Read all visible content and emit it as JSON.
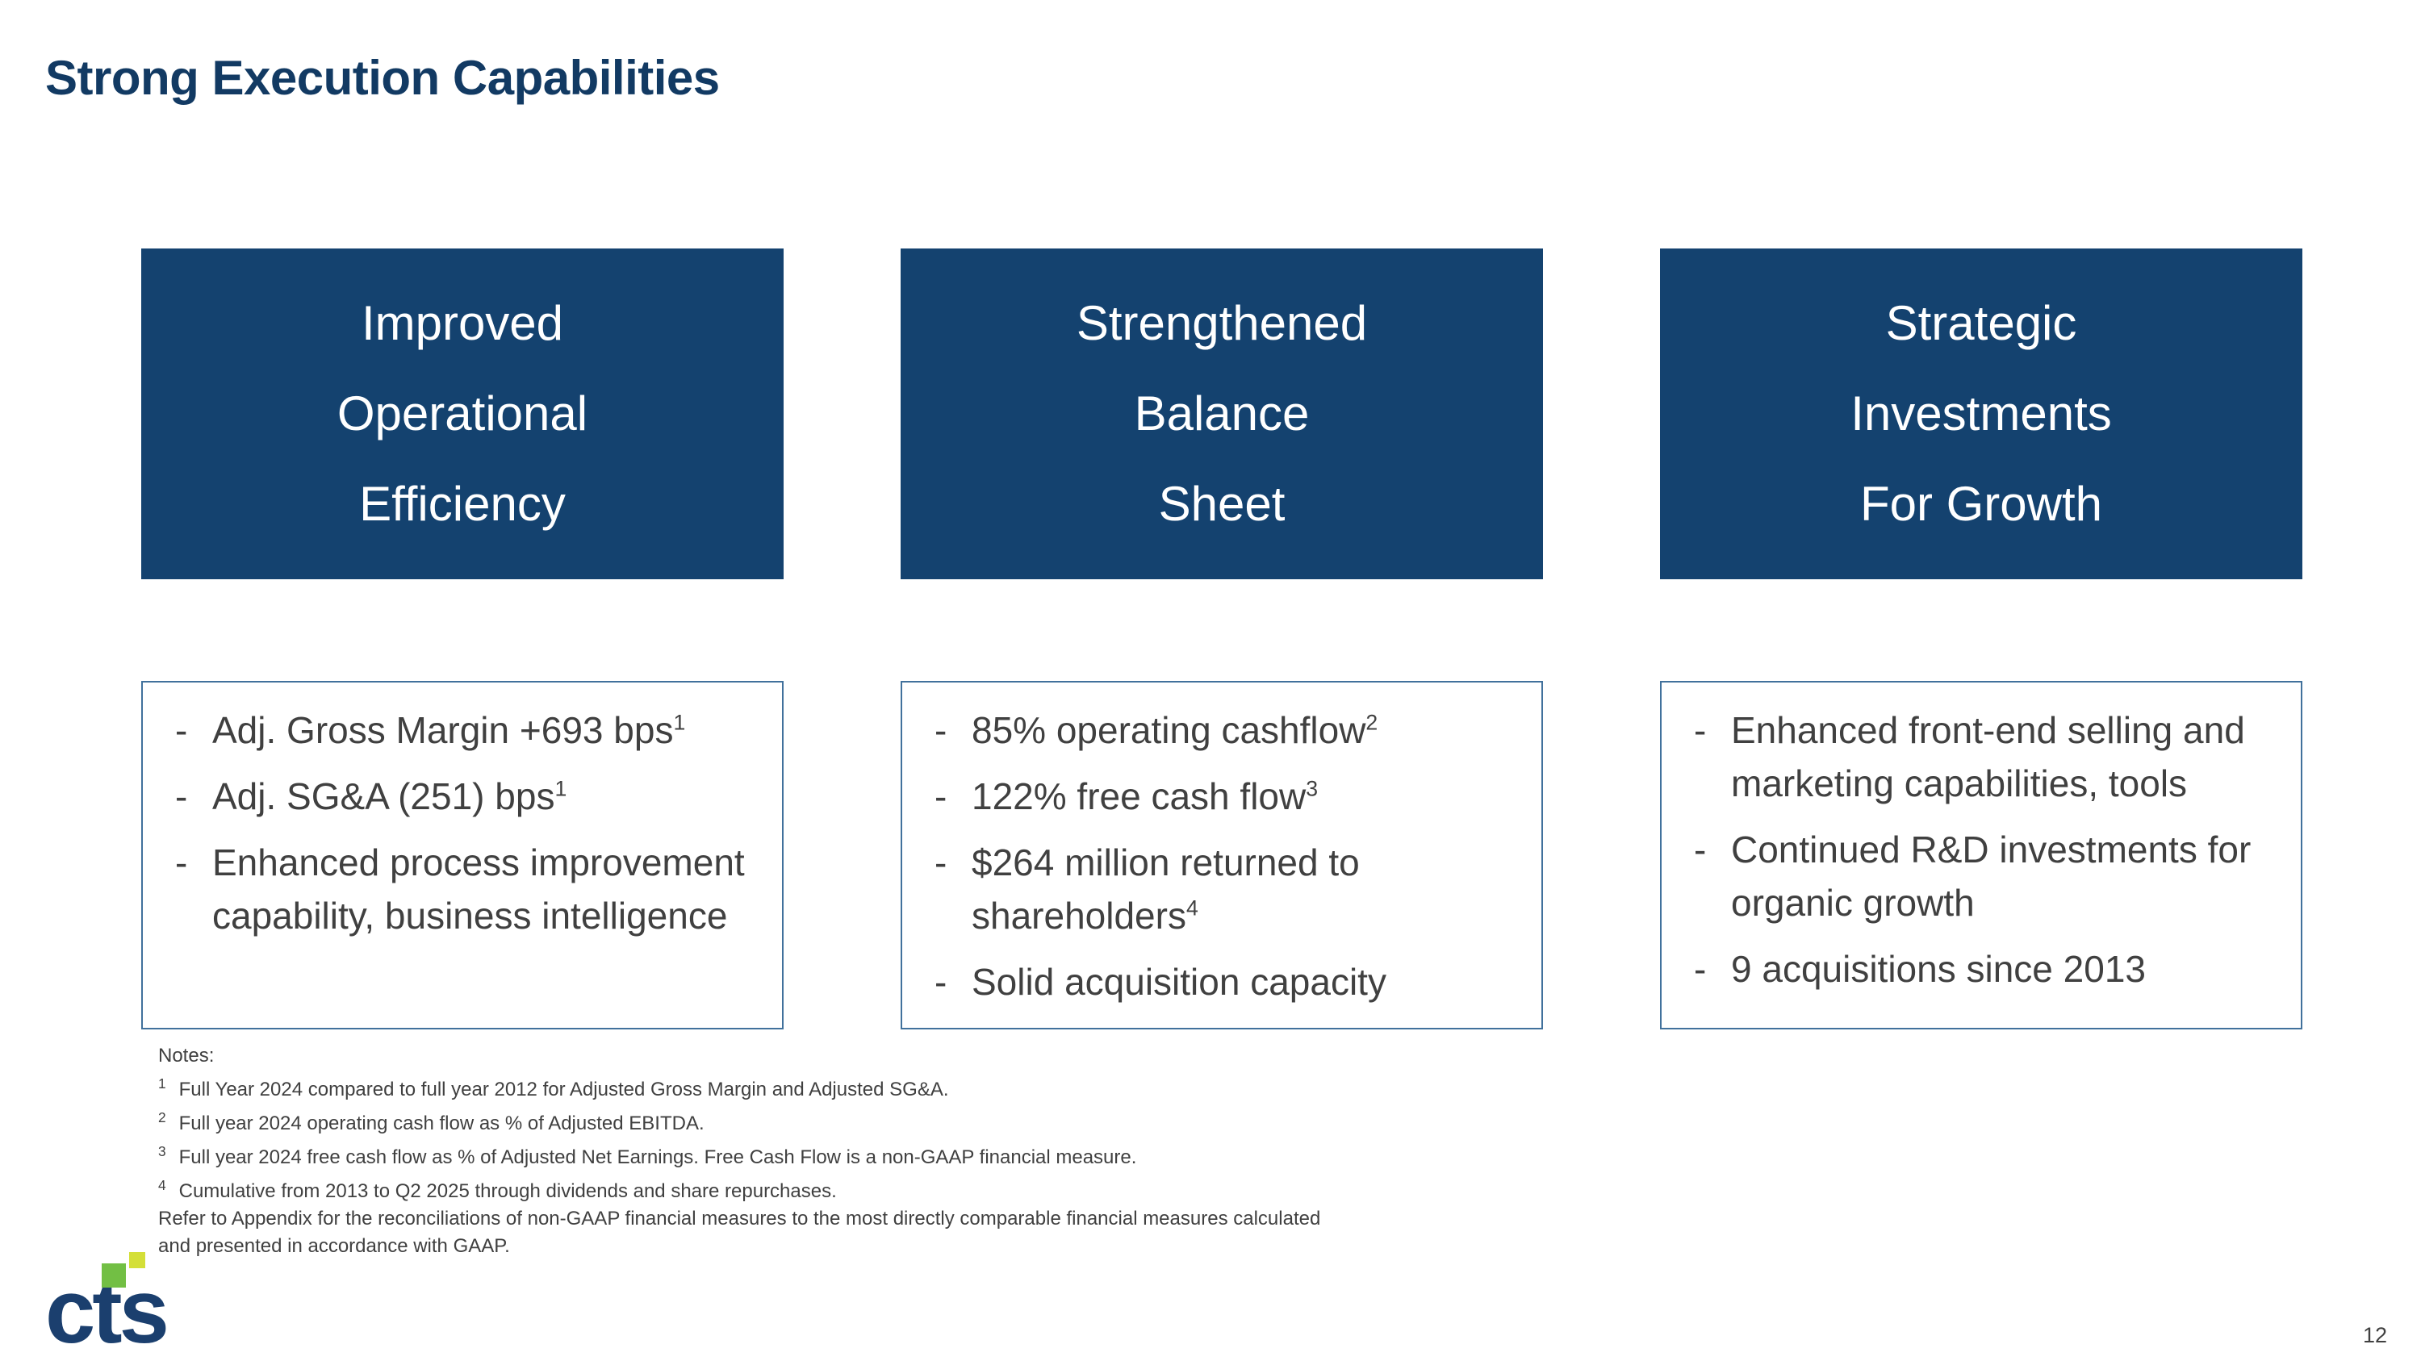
{
  "theme": {
    "colors": {
      "navy": "#14426f",
      "titleNavy": "#123a63",
      "boxBorder": "#41719c",
      "bodyText": "#404040",
      "logoNavy": "#1b3f6e",
      "logoGreen": "#72bf44",
      "logoYellow": "#d4df38"
    }
  },
  "slide": {
    "title": "Strong Execution Capabilities",
    "page_number": "12",
    "bullet_char": "-",
    "logo_text": "cts",
    "columns": [
      {
        "header_lines": [
          "Improved",
          "Operational",
          "Efficiency"
        ],
        "bullets": [
          {
            "text": "Adj. Gross Margin +693 bps",
            "sup": "1"
          },
          {
            "text": "Adj. SG&A (251) bps",
            "sup": "1"
          },
          {
            "text": "Enhanced process improvement capability, business intelligence",
            "sup": ""
          }
        ]
      },
      {
        "header_lines": [
          "Strengthened",
          "Balance",
          "Sheet"
        ],
        "bullets": [
          {
            "text": "85% operating cashflow",
            "sup": "2"
          },
          {
            "text": "122% free cash flow",
            "sup": "3"
          },
          {
            "text": "$264 million returned to shareholders",
            "sup": "4"
          },
          {
            "text": "Solid acquisition capacity",
            "sup": ""
          }
        ]
      },
      {
        "header_lines": [
          "Strategic",
          "Investments",
          "For Growth"
        ],
        "bullets": [
          {
            "text": "Enhanced front-end selling and marketing capabilities, tools",
            "sup": ""
          },
          {
            "text": "Continued R&D investments for organic growth",
            "sup": ""
          },
          {
            "text": "9 acquisitions since 2013",
            "sup": ""
          }
        ]
      }
    ],
    "notes": {
      "label": "Notes:",
      "items": [
        {
          "sup": "1",
          "text": "Full Year 2024 compared to full year 2012 for Adjusted Gross Margin and Adjusted SG&A."
        },
        {
          "sup": "2",
          "text": "Full year 2024 operating cash flow as % of Adjusted EBITDA."
        },
        {
          "sup": "3",
          "text": "Full year 2024 free cash flow as % of Adjusted Net Earnings. Free Cash Flow is a non-GAAP financial measure."
        },
        {
          "sup": "4",
          "text": "Cumulative from 2013 to Q2 2025 through dividends and share repurchases."
        }
      ],
      "footer": "Refer to Appendix for the reconciliations of non-GAAP financial measures to the most directly comparable financial measures calculated and presented in accordance with GAAP."
    }
  }
}
